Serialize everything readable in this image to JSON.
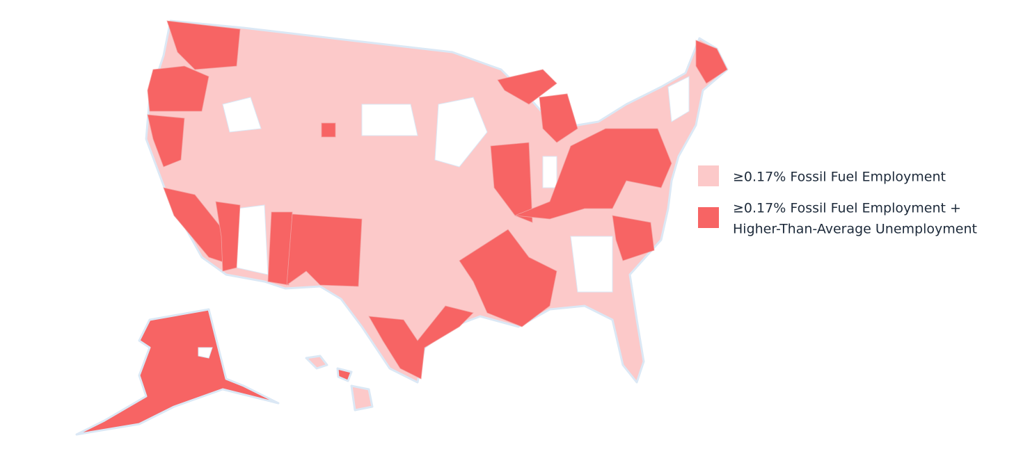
{
  "legend": {
    "items": [
      {
        "color": "#fcc9c9",
        "label": "≥0.17% Fossil Fuel Employment"
      },
      {
        "color": "#f76464",
        "lines": [
          "≥0.17% Fossil Fuel Employment +",
          "Higher-Than-Average Unemployment"
        ]
      }
    ]
  }
}
